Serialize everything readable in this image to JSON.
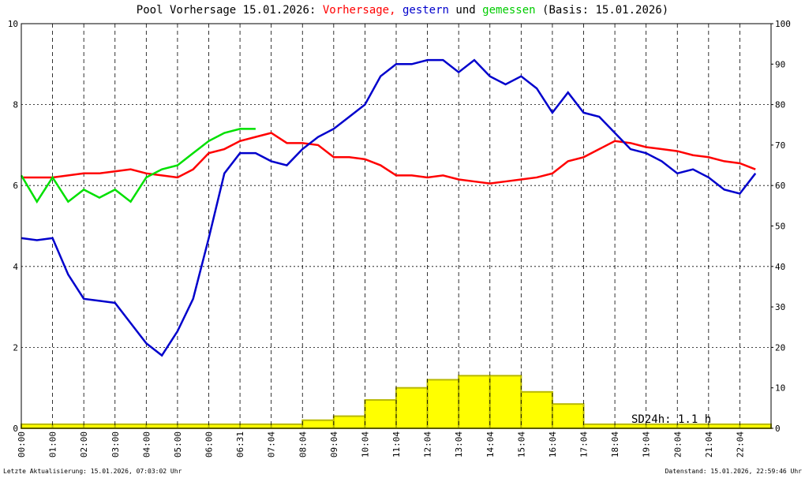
{
  "chart_data": {
    "type": "line",
    "title": "Pool Vorhersage 15.01.2026:",
    "title_connector": "und",
    "title_basis": "(Basis: 15.01.2026)",
    "categories": [
      "00:00",
      null,
      "01:00",
      null,
      "02:00",
      null,
      "03:00",
      null,
      "04:00",
      null,
      "05:00",
      null,
      "06:00",
      null,
      "06:31",
      null,
      "07:04",
      null,
      "08:04",
      null,
      "09:04",
      null,
      "10:04",
      null,
      "11:04",
      null,
      "12:04",
      null,
      "13:04",
      null,
      "14:04",
      null,
      "15:04",
      null,
      "16:04",
      null,
      "17:04",
      null,
      "18:04",
      null,
      "19:04",
      null,
      "20:04",
      null,
      "21:04",
      null,
      "22:04",
      null
    ],
    "series": [
      {
        "name": "Vorhersage,",
        "color": "#ff0000",
        "values": [
          6.2,
          6.2,
          6.2,
          6.25,
          6.3,
          6.3,
          6.35,
          6.4,
          6.3,
          6.25,
          6.2,
          6.4,
          6.8,
          6.9,
          7.1,
          7.2,
          7.3,
          7.05,
          7.05,
          7.0,
          6.7,
          6.7,
          6.65,
          6.5,
          6.25,
          6.25,
          6.2,
          6.25,
          6.15,
          6.1,
          6.05,
          6.1,
          6.15,
          6.2,
          6.3,
          6.6,
          6.7,
          6.9,
          7.1,
          7.05,
          6.95,
          6.9,
          6.85,
          6.75,
          6.7,
          6.6,
          6.55,
          6.4
        ]
      },
      {
        "name": "gestern",
        "color": "#0000cc",
        "values": [
          4.7,
          4.65,
          4.7,
          3.8,
          3.2,
          3.15,
          3.1,
          2.6,
          2.1,
          1.8,
          2.4,
          3.2,
          4.7,
          6.3,
          6.8,
          6.8,
          6.6,
          6.5,
          6.9,
          7.2,
          7.4,
          7.7,
          8.0,
          8.7,
          9.0,
          9.0,
          9.1,
          9.1,
          8.8,
          9.1,
          8.7,
          8.5,
          8.7,
          8.4,
          7.8,
          8.3,
          7.8,
          7.7,
          7.3,
          6.9,
          6.8,
          6.6,
          6.3,
          6.4,
          6.2,
          5.9,
          5.8,
          6.3
        ]
      },
      {
        "name": "gemessen",
        "color": "#00e000",
        "values": [
          6.25,
          5.6,
          6.2,
          5.6,
          5.9,
          5.7,
          5.9,
          5.6,
          6.2,
          6.4,
          6.5,
          6.8,
          7.1,
          7.3,
          7.4,
          7.4,
          null,
          null,
          null,
          null,
          null,
          null,
          null,
          null,
          null,
          null,
          null,
          null,
          null,
          null,
          null,
          null,
          null,
          null,
          null,
          null,
          null,
          null,
          null,
          null,
          null,
          null,
          null,
          null,
          null,
          null,
          null,
          null
        ]
      }
    ],
    "sun": {
      "color": "#ffff00",
      "axis": "y2",
      "values": [
        1,
        1,
        1,
        1,
        1,
        1,
        1,
        1,
        1,
        2,
        3,
        7,
        10,
        12,
        13,
        13,
        9,
        6,
        1,
        1,
        1,
        1,
        1,
        1
      ]
    },
    "ylim": [
      0,
      10
    ],
    "yticks": [
      0,
      2,
      4,
      6,
      8,
      10
    ],
    "y2lim": [
      0,
      100
    ],
    "y2ticks": [
      0,
      10,
      20,
      30,
      40,
      50,
      60,
      70,
      80,
      90,
      100
    ],
    "grid": true,
    "annotation": "SD24h: 1.1 h",
    "footer_left": "Letzte Aktualisierung: 15.01.2026, 07:03:02 Uhr",
    "footer_right": "Datenstand: 15.01.2026, 22:59:46 Uhr"
  }
}
